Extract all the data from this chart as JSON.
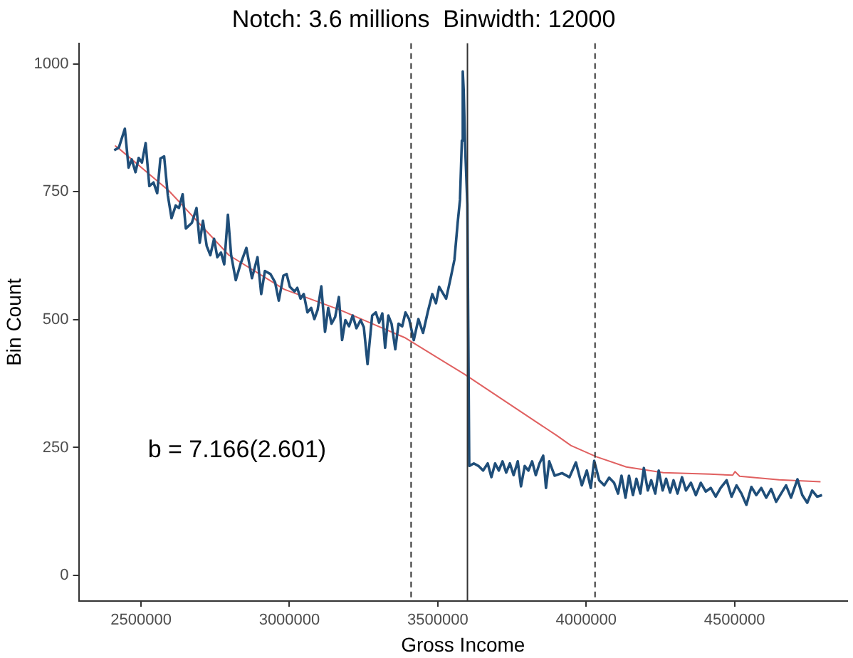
{
  "chart_data": {
    "type": "line",
    "title": "Notch: 3.6 millions  Binwidth: 12000",
    "xlabel": "Gross Income",
    "ylabel": "Bin Count",
    "xlim": [
      2290000,
      4880000
    ],
    "xticks": [
      2500000,
      3000000,
      3500000,
      4000000,
      4500000
    ],
    "ylim": [
      -50,
      1040
    ],
    "yticks": [
      0,
      250,
      500,
      750,
      1000
    ],
    "grid": false,
    "legend": false,
    "marker": "none",
    "line_style": "solid",
    "annotations": [
      "b = 7.166(2.601)"
    ],
    "ref_lines": [
      {
        "axis": "x",
        "value": 3410000,
        "line_style": "dashed",
        "color": "#333333"
      },
      {
        "axis": "x",
        "value": 3600000,
        "line_style": "solid",
        "color": "#333333"
      },
      {
        "axis": "x",
        "value": 4030000,
        "line_style": "dashed",
        "color": "#333333"
      }
    ],
    "series": [
      {
        "color": "#1f4e79",
        "x": [
          2409600,
          2425200,
          2445500,
          2458000,
          2468800,
          2481300,
          2492200,
          2503100,
          2515600,
          2528000,
          2542000,
          2554500,
          2565400,
          2577900,
          2590300,
          2602800,
          2616800,
          2627700,
          2640200,
          2651100,
          2671300,
          2686900,
          2697800,
          2708700,
          2721200,
          2733600,
          2746100,
          2757000,
          2769500,
          2780400,
          2792800,
          2803700,
          2819300,
          2834900,
          2855100,
          2873800,
          2892500,
          2905000,
          2917400,
          2936200,
          2951700,
          2964200,
          2979800,
          2990700,
          3001600,
          3017100,
          3026500,
          3037400,
          3048300,
          3060800,
          3073200,
          3084100,
          3095100,
          3107500,
          3120000,
          3130900,
          3141800,
          3154200,
          3166700,
          3177600,
          3188500,
          3201000,
          3213400,
          3225900,
          3239900,
          3250800,
          3263300,
          3278900,
          3291300,
          3302200,
          3313100,
          3322500,
          3333400,
          3344300,
          3356800,
          3367700,
          3380200,
          3391100,
          3403500,
          3419100,
          3434700,
          3450300,
          3465900,
          3481500,
          3493800,
          3504700,
          3528100,
          3543700,
          3556100,
          3567000,
          3574800,
          3581100,
          3584200,
          3587300,
          3592000,
          3599700,
          3606000,
          3621500,
          3637100,
          3652700,
          3668300,
          3680700,
          3693200,
          3705600,
          3718100,
          3730600,
          3743000,
          3755500,
          3769500,
          3780400,
          3792900,
          3805400,
          3817800,
          3830300,
          3842700,
          3855200,
          3864600,
          3875500,
          3893600,
          3918700,
          3943700,
          3965400,
          3985400,
          4002100,
          4015500,
          4027100,
          4044000,
          4060800,
          4077500,
          4094200,
          4107500,
          4119200,
          4132600,
          4144300,
          4157600,
          4169300,
          4182700,
          4194400,
          4207700,
          4219400,
          4232800,
          4244500,
          4257800,
          4269500,
          4282900,
          4294500,
          4307900,
          4323000,
          4336300,
          4353000,
          4369700,
          4386400,
          4403100,
          4419800,
          4436500,
          4453200,
          4473400,
          4490000,
          4506700,
          4523400,
          4540000,
          4556800,
          4573400,
          4590100,
          4606800,
          4623500,
          4640200,
          4656900,
          4673600,
          4690300,
          4712000,
          4728300,
          4745000,
          4761600,
          4778200,
          4795000
        ],
        "values": [
          831,
          836,
          873,
          797,
          813,
          788,
          816,
          807,
          845,
          761,
          768,
          747,
          815,
          819,
          743,
          698,
          723,
          718,
          745,
          678,
          689,
          718,
          650,
          693,
          644,
          626,
          658,
          622,
          631,
          608,
          705,
          626,
          577,
          608,
          640,
          581,
          622,
          550,
          595,
          589,
          573,
          537,
          586,
          589,
          564,
          555,
          562,
          541,
          550,
          514,
          523,
          501,
          519,
          565,
          476,
          523,
          492,
          505,
          544,
          460,
          499,
          487,
          508,
          483,
          499,
          485,
          413,
          508,
          514,
          494,
          512,
          445,
          508,
          492,
          442,
          492,
          487,
          514,
          501,
          460,
          501,
          474,
          514,
          550,
          532,
          564,
          541,
          582,
          617,
          689,
          734,
          850,
          985,
          949,
          841,
          725,
          214,
          219,
          214,
          205,
          219,
          192,
          219,
          205,
          223,
          201,
          219,
          196,
          223,
          174,
          214,
          205,
          223,
          196,
          219,
          234,
          171,
          223,
          195,
          200,
          192,
          221,
          176,
          205,
          171,
          224,
          186,
          176,
          191,
          181,
          160,
          195,
          152,
          195,
          157,
          189,
          160,
          210,
          166,
          186,
          160,
          205,
          166,
          189,
          162,
          186,
          160,
          192,
          166,
          181,
          157,
          181,
          164,
          171,
          154,
          171,
          186,
          154,
          176,
          160,
          138,
          173,
          157,
          171,
          152,
          169,
          144,
          160,
          176,
          152,
          188,
          157,
          142,
          166,
          154,
          157
        ]
      },
      {
        "color": "#e06060",
        "x": [
          2412000,
          2422000,
          2593500,
          2796000,
          2983000,
          3170000,
          3388000,
          3590500,
          3902000,
          3948600,
          4034300,
          4135500,
          4260100,
          4415900,
          4493800,
          4501600,
          4517200,
          4649600,
          4789800
        ],
        "values": [
          840,
          836,
          752,
          626,
          559,
          519,
          465,
          393,
          273,
          254,
          232,
          212,
          201,
          198,
          196,
          203,
          194,
          187,
          183
        ]
      }
    ]
  }
}
